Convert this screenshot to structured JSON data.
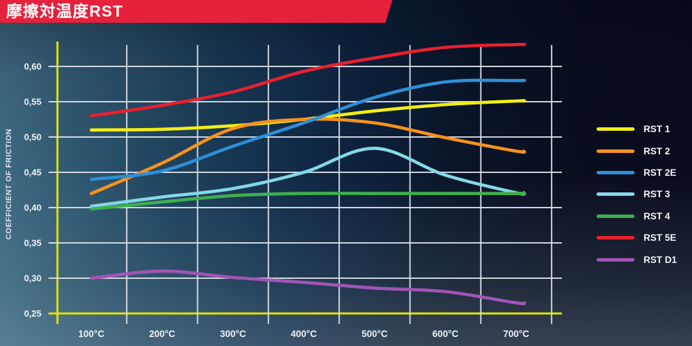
{
  "header": {
    "title": "摩擦対温度RST",
    "banner_color": "#e5213b"
  },
  "chart_data": {
    "type": "line",
    "title": "摩擦対温度RST",
    "xlabel": "",
    "ylabel": "COEFFICIENT OF FRICTION",
    "x_categories": [
      "100°C",
      "200°C",
      "300°C",
      "400°C",
      "500°C",
      "600°C",
      "700°C"
    ],
    "x_values": [
      100,
      200,
      300,
      400,
      500,
      600,
      700
    ],
    "y_tick_labels": [
      "0,60",
      "0,55",
      "0,50",
      "0,45",
      "0,40",
      "0,35",
      "0,30",
      "0,25"
    ],
    "y_tick_values": [
      0.6,
      0.55,
      0.5,
      0.45,
      0.4,
      0.35,
      0.3,
      0.25
    ],
    "ylim": [
      0.25,
      0.635
    ],
    "grid": true,
    "legend_position": "right",
    "axis_color": "#dfe20a",
    "grid_color": "#dde4ea",
    "label_color": "#eef3f6",
    "series": [
      {
        "name": "RST 1",
        "color": "#f2ee12",
        "values": [
          0.51,
          0.511,
          0.516,
          0.525,
          0.537,
          0.546,
          0.551
        ]
      },
      {
        "name": "RST 2",
        "color": "#f6921e",
        "values": [
          0.42,
          0.463,
          0.512,
          0.525,
          0.52,
          0.499,
          0.48
        ]
      },
      {
        "name": "RST 2E",
        "color": "#2e8fd8",
        "values": [
          0.44,
          0.452,
          0.487,
          0.52,
          0.556,
          0.578,
          0.58
        ]
      },
      {
        "name": "RST 3",
        "color": "#85d7e8",
        "values": [
          0.402,
          0.415,
          0.427,
          0.45,
          0.484,
          0.446,
          0.421
        ]
      },
      {
        "name": "RST 4",
        "color": "#3fae4d",
        "values": [
          0.398,
          0.408,
          0.417,
          0.42,
          0.42,
          0.42,
          0.42
        ]
      },
      {
        "name": "RST 5E",
        "color": "#e8202e",
        "values": [
          0.53,
          0.545,
          0.564,
          0.593,
          0.612,
          0.627,
          0.631
        ]
      },
      {
        "name": "RST D1",
        "color": "#a055b5",
        "values": [
          0.3,
          0.31,
          0.301,
          0.294,
          0.286,
          0.281,
          0.265
        ]
      }
    ]
  }
}
